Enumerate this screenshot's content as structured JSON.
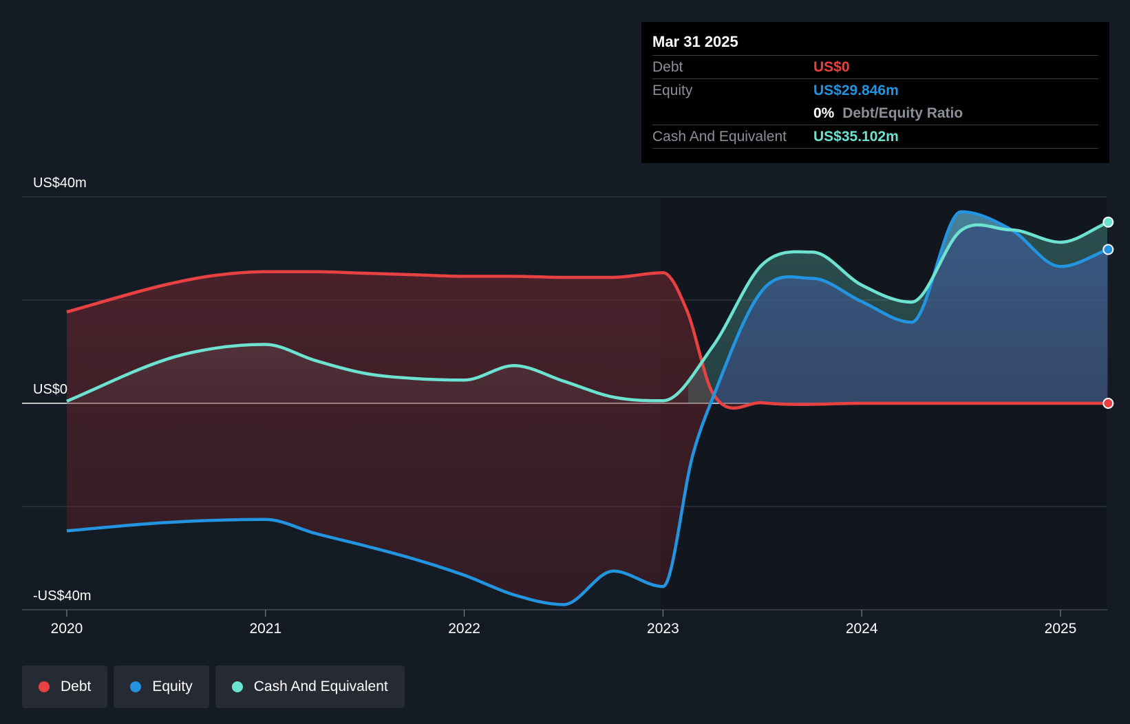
{
  "colors": {
    "background": "#151b24",
    "debt": "#e84142",
    "equity": "#2394df",
    "cash": "#6de2d1",
    "axis_text": "#ffffff",
    "grid": "#3a404a"
  },
  "tooltip": {
    "date": "Mar 31 2025",
    "debt_label": "Debt",
    "debt_value": "US$0",
    "equity_label": "Equity",
    "equity_value": "US$29.846m",
    "ratio_pct": "0%",
    "ratio_label": "Debt/Equity Ratio",
    "cash_label": "Cash And Equivalent",
    "cash_value": "US$35.102m"
  },
  "legend": [
    {
      "label": "Debt",
      "color": "#e84142"
    },
    {
      "label": "Equity",
      "color": "#2394df"
    },
    {
      "label": "Cash And Equivalent",
      "color": "#6de2d1"
    }
  ],
  "chart_data": {
    "type": "area",
    "y_tick_labels": [
      "US$40m",
      "US$0",
      "-US$40m"
    ],
    "y_tick_values": [
      40,
      0,
      -40
    ],
    "ylim": [
      -40,
      40
    ],
    "xlim": [
      2019.78,
      2025.24
    ],
    "x_ticks": [
      2020,
      2021,
      2022,
      2023,
      2024,
      2025
    ],
    "x_tick_labels": [
      "2020",
      "2021",
      "2022",
      "2023",
      "2024",
      "2025"
    ],
    "grid": true,
    "legend_position": "bottom-left",
    "series": [
      {
        "name": "Debt",
        "x": [
          2020.0,
          2020.5,
          2020.75,
          2021.0,
          2021.25,
          2021.5,
          2021.75,
          2022.0,
          2022.25,
          2022.5,
          2022.75,
          2023.0,
          2023.12,
          2023.25,
          2023.5,
          2024.0,
          2024.5,
          2025.0,
          2025.24
        ],
        "values": [
          17.7,
          23.0,
          24.8,
          25.5,
          25.5,
          25.2,
          24.9,
          24.6,
          24.6,
          24.4,
          24.4,
          25.3,
          18.0,
          2.0,
          0.1,
          0.0,
          0.0,
          0.0,
          0.0
        ]
      },
      {
        "name": "Equity",
        "x": [
          2020.0,
          2020.5,
          2021.0,
          2021.25,
          2021.5,
          2021.75,
          2022.0,
          2022.25,
          2022.5,
          2022.75,
          2023.0,
          2023.15,
          2023.25,
          2023.5,
          2023.75,
          2024.0,
          2024.25,
          2024.5,
          2024.75,
          2025.0,
          2025.24
        ],
        "values": [
          -24.7,
          -23.1,
          -22.5,
          -25.2,
          -27.6,
          -30.2,
          -33.3,
          -37.1,
          -39.0,
          -32.5,
          -35.5,
          -10.0,
          1.0,
          21.9,
          24.2,
          19.7,
          15.7,
          37.1,
          33.7,
          26.5,
          29.8
        ]
      },
      {
        "name": "Cash And Equivalent",
        "x": [
          2020.0,
          2020.5,
          2020.75,
          2021.0,
          2021.25,
          2021.5,
          2021.75,
          2022.0,
          2022.25,
          2022.5,
          2022.75,
          2023.0,
          2023.25,
          2023.5,
          2023.75,
          2024.0,
          2024.25,
          2024.5,
          2024.75,
          2025.0,
          2025.24
        ],
        "values": [
          0.4,
          8.5,
          10.7,
          11.4,
          8.3,
          5.8,
          4.8,
          4.5,
          7.3,
          4.3,
          1.2,
          0.5,
          11.0,
          26.9,
          29.3,
          22.9,
          19.6,
          33.5,
          33.6,
          31.2,
          35.1
        ]
      }
    ]
  }
}
